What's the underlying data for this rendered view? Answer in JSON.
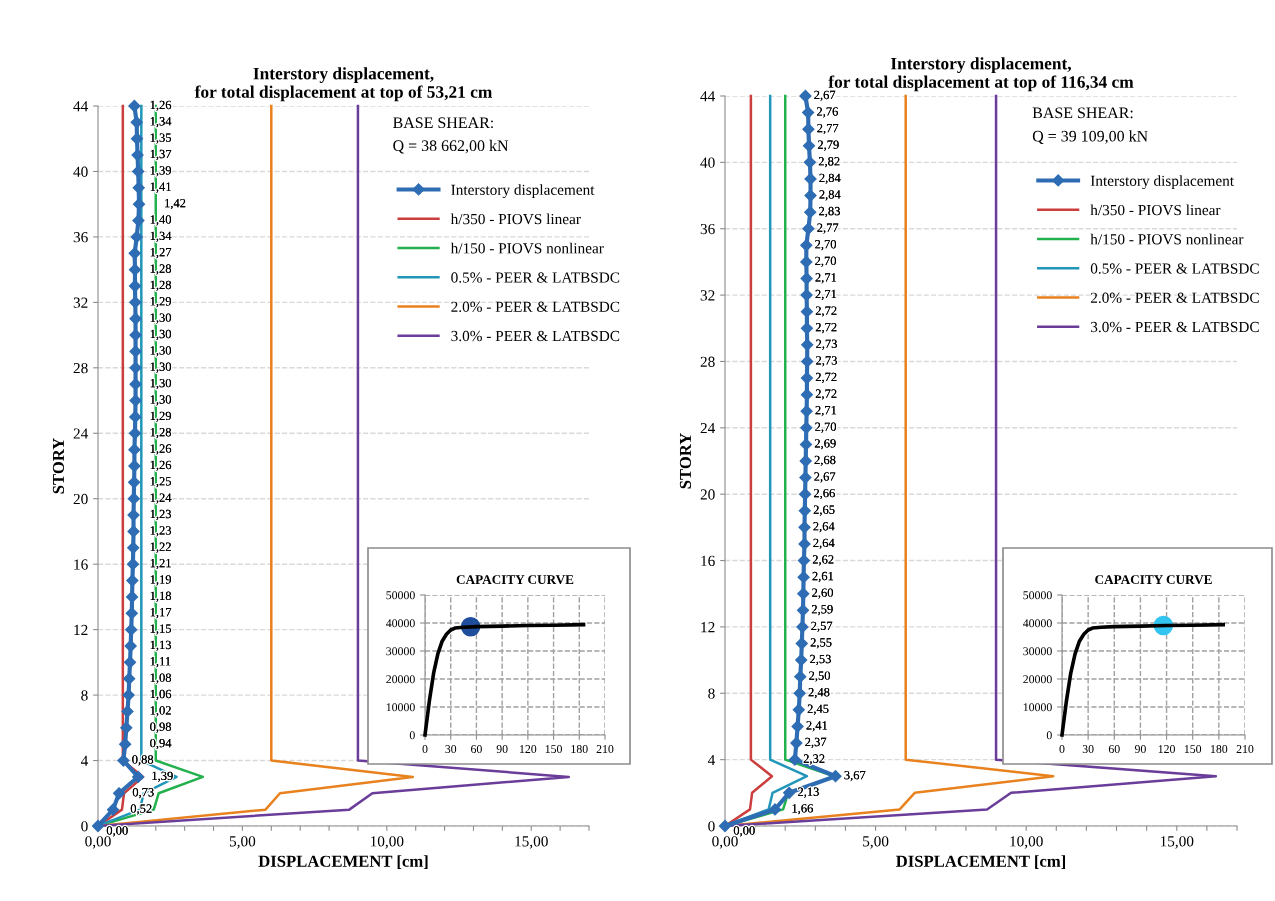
{
  "chart_data": [
    {
      "type": "line",
      "orientation": "horizontal",
      "title": "Interstory displacement,\nfor total displacement at top of 53,21 cm",
      "xlabel": "DISPLACEMENT [cm]",
      "ylabel": "STORY",
      "annotations": [
        "BASE SHEAR:",
        "Q = 38 662,00 kN"
      ],
      "xlim": [
        0,
        17
      ],
      "xticks": [
        {
          "value": 0,
          "label": "0,00"
        },
        {
          "value": 1,
          "label": null
        },
        {
          "value": 2,
          "label": null
        },
        {
          "value": 3,
          "label": null
        },
        {
          "value": 4,
          "label": null
        },
        {
          "value": 5,
          "label": "5,00"
        },
        {
          "value": 6,
          "label": null
        },
        {
          "value": 7,
          "label": null
        },
        {
          "value": 8,
          "label": null
        },
        {
          "value": 9,
          "label": null
        },
        {
          "value": 10,
          "label": "10,00"
        },
        {
          "value": 11,
          "label": null
        },
        {
          "value": 12,
          "label": null
        },
        {
          "value": 13,
          "label": null
        },
        {
          "value": 14,
          "label": null
        },
        {
          "value": 15,
          "label": "15,00"
        },
        {
          "value": 16,
          "label": null
        },
        {
          "value": 17,
          "label": null
        }
      ],
      "ylim": [
        0,
        44
      ],
      "yticks": [
        0,
        4,
        8,
        12,
        16,
        20,
        24,
        28,
        32,
        36,
        40,
        44
      ],
      "grid": "y",
      "legend": "top right",
      "series": [
        {
          "name": "Interstory displacement",
          "color": "#2e6db4",
          "marker": "diamond",
          "values": [
            0,
            0.52,
            0.73,
            1.39,
            0.88,
            0.94,
            0.98,
            1.02,
            1.06,
            1.08,
            1.11,
            1.13,
            1.15,
            1.17,
            1.18,
            1.19,
            1.21,
            1.22,
            1.23,
            1.23,
            1.24,
            1.25,
            1.26,
            1.26,
            1.28,
            1.29,
            1.3,
            1.3,
            1.3,
            1.3,
            1.3,
            1.3,
            1.29,
            1.28,
            1.28,
            1.27,
            1.34,
            1.4,
            1.42,
            1.41,
            1.39,
            1.37,
            1.35,
            1.34,
            1.26
          ],
          "x": [
            0,
            1,
            2,
            3,
            4,
            5,
            6,
            7,
            8,
            9,
            10,
            11,
            12,
            13,
            14,
            15,
            16,
            17,
            18,
            19,
            20,
            21,
            22,
            23,
            24,
            25,
            26,
            27,
            28,
            29,
            30,
            31,
            32,
            33,
            34,
            35,
            36,
            37,
            38,
            39,
            40,
            41,
            42,
            43,
            44
          ],
          "value_labels": [
            "0,00",
            "0,52",
            "0,73",
            "1,39",
            "0,88",
            "0,94",
            "0,98",
            "1,02",
            "1,06",
            "1,08",
            "1,11",
            "1,13",
            "1,15",
            "1,17",
            "1,18",
            "1,19",
            "1,21",
            "1,22",
            "1,23",
            "1,23",
            "1,24",
            "1,25",
            "1,26",
            "1,26",
            "1,28",
            "1,29",
            "1,30",
            "1,30",
            "1,30",
            "1,30",
            "1,30",
            "1,30",
            "1,29",
            "1,28",
            "1,28",
            "1,27",
            "1,34",
            "1,40",
            "1,42",
            "1,41",
            "1,39",
            "1,37",
            "1,35",
            "1,34",
            "1,26"
          ]
        },
        {
          "name": "h/350 - PIOVS linear",
          "color": "#cc3d3d",
          "values": [
            0,
            0.83,
            0.9,
            1.56,
            0.86,
            0.86
          ],
          "x": [
            0,
            1,
            2,
            3,
            4,
            44
          ]
        },
        {
          "name": "h/150 - PIOVS nonlinear",
          "color": "#22b14c",
          "values": [
            0,
            1.93,
            2.1,
            3.63,
            2.0,
            2.0
          ],
          "x": [
            0,
            1,
            2,
            3,
            4,
            44
          ]
        },
        {
          "name": "0.5% - PEER & LATBSDC",
          "color": "#2196b8",
          "values": [
            0,
            1.45,
            1.58,
            2.72,
            1.5,
            1.5
          ],
          "x": [
            0,
            1,
            2,
            3,
            4,
            44
          ]
        },
        {
          "name": "2.0% - PEER & LATBSDC",
          "color": "#e8821e",
          "values": [
            0,
            5.8,
            6.3,
            10.9,
            6.0,
            6.0
          ],
          "x": [
            0,
            1,
            2,
            3,
            4,
            44
          ]
        },
        {
          "name": "3.0% - PEER & LATBSDC",
          "color": "#6a3d9a",
          "values": [
            0,
            8.7,
            9.5,
            16.3,
            9.0,
            9.0
          ],
          "x": [
            0,
            1,
            2,
            3,
            4,
            44
          ]
        }
      ]
    },
    {
      "type": "line",
      "title": "CAPACITY CURVE",
      "xlim": [
        0,
        210
      ],
      "xticks": [
        0,
        30,
        60,
        90,
        120,
        150,
        180,
        210
      ],
      "ylim": [
        0,
        50000
      ],
      "yticks": [
        0,
        10000,
        20000,
        30000,
        40000,
        50000
      ],
      "grid": true,
      "series": [
        {
          "color": "#000000",
          "x": [
            0,
            5,
            10,
            15,
            20,
            25,
            30,
            35,
            45,
            60,
            90,
            120,
            150,
            185
          ],
          "values": [
            0,
            12000,
            22000,
            29000,
            33500,
            36000,
            37500,
            38200,
            38500,
            38700,
            38900,
            39100,
            39200,
            39400
          ]
        },
        {
          "type": "scatter",
          "color": "#1f4e9c",
          "x": [
            53.21
          ],
          "values": [
            38662
          ]
        }
      ]
    },
    {
      "type": "line",
      "orientation": "horizontal",
      "title": "Interstory displacement,\nfor total displacement at top of 116,34 cm",
      "xlabel": "DISPLACEMENT [cm]",
      "ylabel": "STORY",
      "annotations": [
        "BASE SHEAR:",
        "Q = 39 109,00 kN"
      ],
      "xlim": [
        0,
        17
      ],
      "xticks": [
        {
          "value": 0,
          "label": "0,00"
        },
        {
          "value": 1,
          "label": null
        },
        {
          "value": 2,
          "label": null
        },
        {
          "value": 3,
          "label": null
        },
        {
          "value": 4,
          "label": null
        },
        {
          "value": 5,
          "label": "5,00"
        },
        {
          "value": 6,
          "label": null
        },
        {
          "value": 7,
          "label": null
        },
        {
          "value": 8,
          "label": null
        },
        {
          "value": 9,
          "label": null
        },
        {
          "value": 10,
          "label": "10,00"
        },
        {
          "value": 11,
          "label": null
        },
        {
          "value": 12,
          "label": null
        },
        {
          "value": 13,
          "label": null
        },
        {
          "value": 14,
          "label": null
        },
        {
          "value": 15,
          "label": "15,00"
        },
        {
          "value": 16,
          "label": null
        },
        {
          "value": 17,
          "label": null
        }
      ],
      "ylim": [
        0,
        44
      ],
      "yticks": [
        0,
        4,
        8,
        12,
        16,
        20,
        24,
        28,
        32,
        36,
        40,
        44
      ],
      "grid": "y",
      "legend": "top right",
      "series": [
        {
          "name": "Interstory displacement",
          "color": "#2e6db4",
          "marker": "diamond",
          "values": [
            0,
            1.66,
            2.13,
            3.67,
            2.32,
            2.37,
            2.41,
            2.45,
            2.48,
            2.5,
            2.53,
            2.55,
            2.57,
            2.59,
            2.6,
            2.61,
            2.62,
            2.64,
            2.64,
            2.65,
            2.66,
            2.67,
            2.68,
            2.69,
            2.7,
            2.71,
            2.72,
            2.72,
            2.73,
            2.73,
            2.72,
            2.72,
            2.71,
            2.71,
            2.7,
            2.7,
            2.77,
            2.83,
            2.84,
            2.84,
            2.82,
            2.79,
            2.77,
            2.76,
            2.67
          ],
          "x": [
            0,
            1,
            2,
            3,
            4,
            5,
            6,
            7,
            8,
            9,
            10,
            11,
            12,
            13,
            14,
            15,
            16,
            17,
            18,
            19,
            20,
            21,
            22,
            23,
            24,
            25,
            26,
            27,
            28,
            29,
            30,
            31,
            32,
            33,
            34,
            35,
            36,
            37,
            38,
            39,
            40,
            41,
            42,
            43,
            44
          ],
          "value_labels": [
            "0,00",
            "1,66",
            "2,13",
            "3,67",
            "2,32",
            "2,37",
            "2,41",
            "2,45",
            "2,48",
            "2,50",
            "2,53",
            "2,55",
            "2,57",
            "2,59",
            "2,60",
            "2,61",
            "2,62",
            "2,64",
            "2,64",
            "2,65",
            "2,66",
            "2,67",
            "2,68",
            "2,69",
            "2,70",
            "2,71",
            "2,72",
            "2,72",
            "2,73",
            "2,73",
            "2,72",
            "2,72",
            "2,71",
            "2,71",
            "2,70",
            "2,70",
            "2,77",
            "2,83",
            "2,84",
            "2,84",
            "2,82",
            "2,79",
            "2,77",
            "2,76",
            "2,67"
          ]
        },
        {
          "name": "h/350 - PIOVS linear",
          "color": "#cc3d3d",
          "values": [
            0,
            0.83,
            0.9,
            1.56,
            0.86,
            0.86
          ],
          "x": [
            0,
            1,
            2,
            3,
            4,
            44
          ]
        },
        {
          "name": "h/150 - PIOVS nonlinear",
          "color": "#22b14c",
          "values": [
            0,
            1.93,
            2.1,
            3.63,
            2.0,
            2.0
          ],
          "x": [
            0,
            1,
            2,
            3,
            4,
            44
          ]
        },
        {
          "name": "0.5% - PEER & LATBSDC",
          "color": "#2196b8",
          "values": [
            0,
            1.45,
            1.58,
            2.72,
            1.5,
            1.5
          ],
          "x": [
            0,
            1,
            2,
            3,
            4,
            44
          ]
        },
        {
          "name": "2.0% - PEER & LATBSDC",
          "color": "#e8821e",
          "values": [
            0,
            5.8,
            6.3,
            10.9,
            6.0,
            6.0
          ],
          "x": [
            0,
            1,
            2,
            3,
            4,
            44
          ]
        },
        {
          "name": "3.0% - PEER & LATBSDC",
          "color": "#6a3d9a",
          "values": [
            0,
            8.7,
            9.5,
            16.3,
            9.0,
            9.0
          ],
          "x": [
            0,
            1,
            2,
            3,
            4,
            44
          ]
        }
      ]
    },
    {
      "type": "line",
      "title": "CAPACITY CURVE",
      "xlim": [
        0,
        210
      ],
      "xticks": [
        0,
        30,
        60,
        90,
        120,
        150,
        180,
        210
      ],
      "ylim": [
        0,
        50000
      ],
      "yticks": [
        0,
        10000,
        20000,
        30000,
        40000,
        50000
      ],
      "grid": true,
      "series": [
        {
          "color": "#000000",
          "x": [
            0,
            5,
            10,
            15,
            20,
            25,
            30,
            35,
            45,
            60,
            90,
            120,
            150,
            185
          ],
          "values": [
            0,
            12000,
            22000,
            29000,
            33500,
            36000,
            37500,
            38200,
            38500,
            38700,
            38900,
            39100,
            39200,
            39400
          ]
        },
        {
          "type": "scatter",
          "color": "#33c4f0",
          "x": [
            116.34
          ],
          "values": [
            39109
          ]
        }
      ]
    }
  ]
}
